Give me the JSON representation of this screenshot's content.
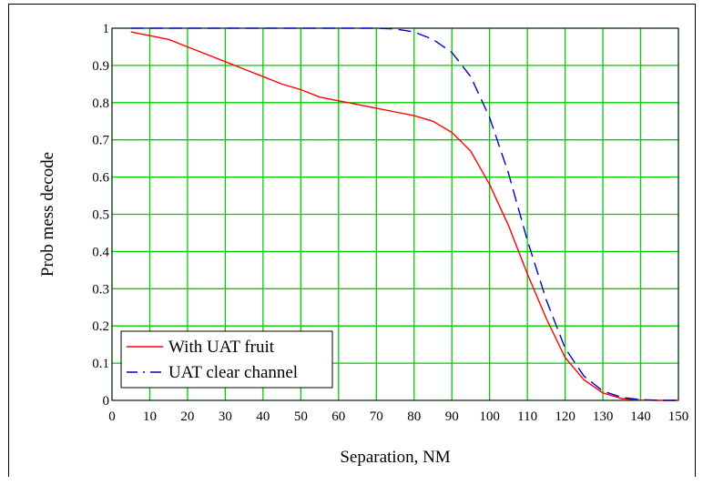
{
  "chart_data": {
    "type": "line",
    "xlabel": "Separation, NM",
    "ylabel": "Prob mess decode",
    "xlim": [
      0,
      150
    ],
    "ylim": [
      0,
      1
    ],
    "x_ticks": [
      "0",
      "10",
      "20",
      "30",
      "40",
      "50",
      "60",
      "70",
      "80",
      "90",
      "100",
      "110",
      "120",
      "130",
      "140",
      "150"
    ],
    "y_ticks": [
      "0",
      "0.1",
      "0.2",
      "0.3",
      "0.4",
      "0.5",
      "0.6",
      "0.7",
      "0.8",
      "0.9",
      "1"
    ],
    "grid": true,
    "grid_color": "#00cc00",
    "legend_position": "bottom-left",
    "series": [
      {
        "name": "With UAT fruit",
        "color": "#ff0000",
        "dash": "solid",
        "x": [
          5,
          10,
          15,
          20,
          25,
          30,
          35,
          40,
          45,
          50,
          55,
          60,
          65,
          70,
          75,
          80,
          85,
          90,
          95,
          100,
          105,
          110,
          115,
          120,
          125,
          130,
          135,
          140,
          145,
          150
        ],
        "y": [
          0.99,
          0.98,
          0.97,
          0.95,
          0.93,
          0.91,
          0.89,
          0.87,
          0.85,
          0.835,
          0.815,
          0.805,
          0.795,
          0.785,
          0.775,
          0.765,
          0.75,
          0.72,
          0.67,
          0.58,
          0.47,
          0.34,
          0.22,
          0.115,
          0.055,
          0.02,
          0.005,
          0.001,
          0.0,
          0.0
        ]
      },
      {
        "name": "UAT clear channel",
        "color": "#0000cc",
        "dash": "long-dash",
        "x": [
          5,
          10,
          20,
          30,
          40,
          50,
          60,
          70,
          75,
          80,
          85,
          90,
          95,
          100,
          105,
          110,
          115,
          120,
          125,
          130,
          135,
          140,
          145,
          150
        ],
        "y": [
          1.0,
          1.0,
          1.0,
          1.0,
          1.0,
          1.0,
          1.0,
          1.0,
          0.998,
          0.99,
          0.97,
          0.935,
          0.87,
          0.76,
          0.61,
          0.43,
          0.27,
          0.14,
          0.065,
          0.025,
          0.008,
          0.002,
          0.0,
          0.0
        ]
      }
    ]
  }
}
